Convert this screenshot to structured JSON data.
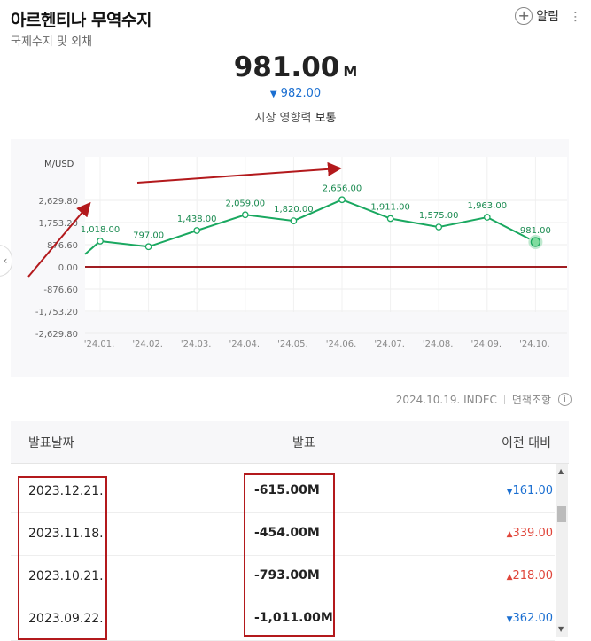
{
  "header": {
    "title": "아르헨티나 무역수지",
    "subtitle": "국제수지 및 외채",
    "alarm_label": "알림"
  },
  "summary": {
    "value": "981.00",
    "unit": "M",
    "previous": "982.00",
    "impact_label": "시장 영향력",
    "impact_value": "보통"
  },
  "meta": {
    "date_source": "2024.10.19. INDEC",
    "disclaimer": "면책조항"
  },
  "table": {
    "headers": [
      "발표날짜",
      "발표",
      "이전 대비"
    ],
    "rows": [
      {
        "date": "2023.12.21.",
        "actual": "-615.00M",
        "prev": "161.00",
        "dir": "down"
      },
      {
        "date": "2023.11.18.",
        "actual": "-454.00M",
        "prev": "339.00",
        "dir": "up"
      },
      {
        "date": "2023.10.21.",
        "actual": "-793.00M",
        "prev": "218.00",
        "dir": "up"
      },
      {
        "date": "2023.09.22.",
        "actual": "-1,011.00M",
        "prev": "362.00",
        "dir": "down"
      }
    ]
  },
  "chart_data": {
    "type": "line",
    "ylabel": "M/USD",
    "categories": [
      "'24.01.",
      "'24.02.",
      "'24.03.",
      "'24.04.",
      "'24.05.",
      "'24.06.",
      "'24.07.",
      "'24.08.",
      "'24.09.",
      "'24.10."
    ],
    "values": [
      1018,
      797,
      1438,
      2059,
      1820,
      2656,
      1911,
      1575,
      1963,
      981
    ],
    "labels": [
      "1,018.00",
      "797.00",
      "1,438.00",
      "2,059.00",
      "1,820.00",
      "2,656.00",
      "1,911.00",
      "1,575.00",
      "1,963.00",
      "981.00"
    ],
    "yticks": [
      2629.8,
      1753.2,
      876.6,
      0,
      -876.6,
      -1753.2,
      -2629.8
    ],
    "ytick_labels": [
      "2,629.80",
      "1,753.20",
      "876.60",
      "0.00",
      "-876.60",
      "-1,753.20",
      "-2,629.80"
    ],
    "ylim": [
      -2629.8,
      2629.8
    ],
    "start_value": 500,
    "colors": {
      "line": "#1aa860",
      "zero": "#a01d22",
      "annotation": "#b3191c"
    }
  }
}
